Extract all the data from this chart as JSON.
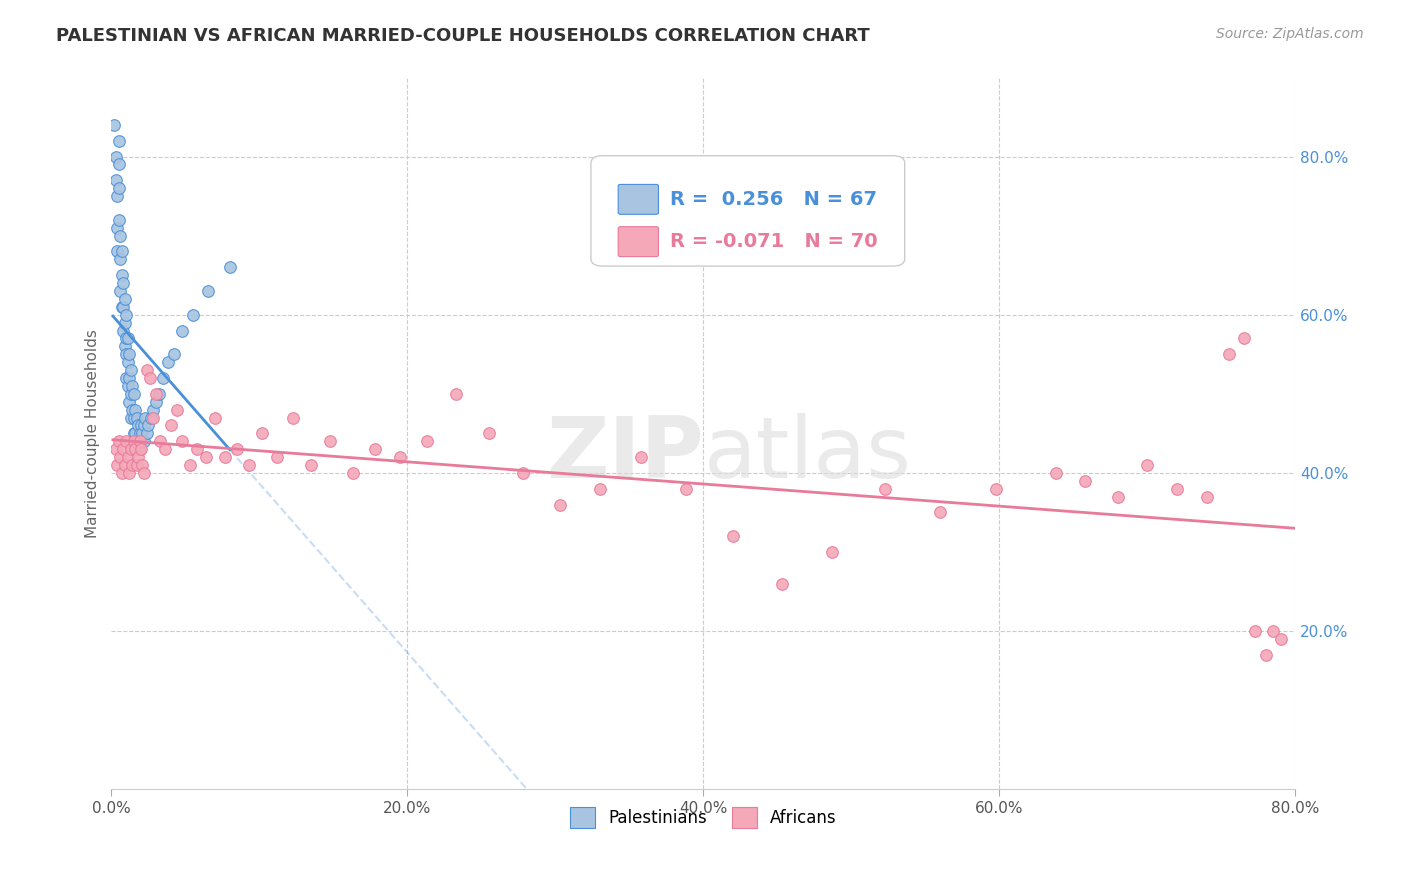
{
  "title": "PALESTINIAN VS AFRICAN MARRIED-COUPLE HOUSEHOLDS CORRELATION CHART",
  "source": "Source: ZipAtlas.com",
  "ylabel": "Married-couple Households",
  "xlim": [
    0,
    0.8
  ],
  "ylim": [
    0,
    0.9
  ],
  "xtick_labels": [
    "0.0%",
    "",
    "20.0%",
    "",
    "40.0%",
    "",
    "60.0%",
    "",
    "80.0%"
  ],
  "xtick_vals": [
    0.0,
    0.1,
    0.2,
    0.3,
    0.4,
    0.5,
    0.6,
    0.7,
    0.8
  ],
  "right_ytick_labels": [
    "20.0%",
    "40.0%",
    "60.0%",
    "80.0%"
  ],
  "right_ytick_vals": [
    0.2,
    0.4,
    0.6,
    0.8
  ],
  "pal_color": "#a8c4e0",
  "afr_color": "#f4a8b8",
  "pal_line_color": "#4a90d9",
  "afr_line_color": "#e87a9a",
  "watermark_zip": "ZIP",
  "watermark_atlas": "atlas",
  "title_color": "#333333",
  "source_color": "#999999",
  "blue_label_color": "#4a90d9",
  "pink_label_color": "#e87a9a",
  "palestinians_x": [
    0.002,
    0.003,
    0.003,
    0.004,
    0.004,
    0.004,
    0.005,
    0.005,
    0.005,
    0.005,
    0.006,
    0.006,
    0.006,
    0.007,
    0.007,
    0.007,
    0.008,
    0.008,
    0.008,
    0.009,
    0.009,
    0.009,
    0.01,
    0.01,
    0.01,
    0.01,
    0.011,
    0.011,
    0.011,
    0.012,
    0.012,
    0.012,
    0.013,
    0.013,
    0.013,
    0.014,
    0.014,
    0.015,
    0.015,
    0.015,
    0.016,
    0.016,
    0.017,
    0.017,
    0.018,
    0.018,
    0.019,
    0.019,
    0.02,
    0.02,
    0.021,
    0.022,
    0.022,
    0.023,
    0.024,
    0.025,
    0.027,
    0.028,
    0.03,
    0.032,
    0.035,
    0.038,
    0.042,
    0.048,
    0.055,
    0.065,
    0.08
  ],
  "palestinians_y": [
    0.84,
    0.8,
    0.77,
    0.75,
    0.71,
    0.68,
    0.82,
    0.79,
    0.76,
    0.72,
    0.7,
    0.67,
    0.63,
    0.68,
    0.65,
    0.61,
    0.64,
    0.61,
    0.58,
    0.62,
    0.59,
    0.56,
    0.6,
    0.57,
    0.55,
    0.52,
    0.57,
    0.54,
    0.51,
    0.55,
    0.52,
    0.49,
    0.53,
    0.5,
    0.47,
    0.51,
    0.48,
    0.5,
    0.47,
    0.45,
    0.48,
    0.45,
    0.47,
    0.44,
    0.46,
    0.43,
    0.45,
    0.43,
    0.46,
    0.44,
    0.45,
    0.46,
    0.44,
    0.47,
    0.45,
    0.46,
    0.47,
    0.48,
    0.49,
    0.5,
    0.52,
    0.54,
    0.55,
    0.58,
    0.6,
    0.63,
    0.66
  ],
  "africans_x": [
    0.003,
    0.004,
    0.005,
    0.006,
    0.007,
    0.008,
    0.009,
    0.01,
    0.011,
    0.012,
    0.013,
    0.014,
    0.015,
    0.016,
    0.017,
    0.018,
    0.019,
    0.02,
    0.021,
    0.022,
    0.024,
    0.026,
    0.028,
    0.03,
    0.033,
    0.036,
    0.04,
    0.044,
    0.048,
    0.053,
    0.058,
    0.064,
    0.07,
    0.077,
    0.085,
    0.093,
    0.102,
    0.112,
    0.123,
    0.135,
    0.148,
    0.163,
    0.178,
    0.195,
    0.213,
    0.233,
    0.255,
    0.278,
    0.303,
    0.33,
    0.358,
    0.388,
    0.42,
    0.453,
    0.487,
    0.523,
    0.56,
    0.598,
    0.638,
    0.658,
    0.68,
    0.7,
    0.72,
    0.74,
    0.755,
    0.765,
    0.773,
    0.78,
    0.785,
    0.79
  ],
  "africans_y": [
    0.43,
    0.41,
    0.44,
    0.42,
    0.4,
    0.43,
    0.41,
    0.44,
    0.42,
    0.4,
    0.43,
    0.41,
    0.44,
    0.43,
    0.41,
    0.42,
    0.44,
    0.43,
    0.41,
    0.4,
    0.53,
    0.52,
    0.47,
    0.5,
    0.44,
    0.43,
    0.46,
    0.48,
    0.44,
    0.41,
    0.43,
    0.42,
    0.47,
    0.42,
    0.43,
    0.41,
    0.45,
    0.42,
    0.47,
    0.41,
    0.44,
    0.4,
    0.43,
    0.42,
    0.44,
    0.5,
    0.45,
    0.4,
    0.36,
    0.38,
    0.42,
    0.38,
    0.32,
    0.26,
    0.3,
    0.38,
    0.35,
    0.38,
    0.4,
    0.39,
    0.37,
    0.41,
    0.38,
    0.37,
    0.55,
    0.57,
    0.2,
    0.17,
    0.2,
    0.19
  ],
  "pal_r": 0.256,
  "pal_n": 67,
  "afr_r": -0.071,
  "afr_n": 70
}
